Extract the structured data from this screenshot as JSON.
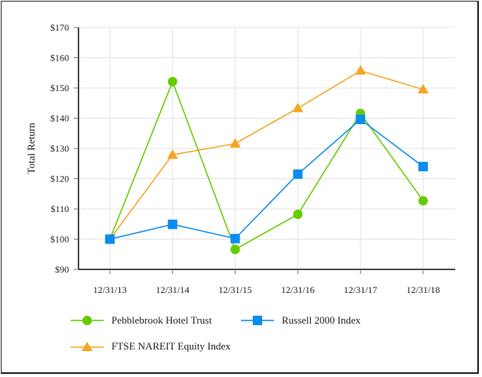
{
  "chart_data": {
    "type": "line",
    "title": "",
    "xlabel": "",
    "ylabel": "Total Return",
    "ylim": [
      90,
      170
    ],
    "ytick_step": 10,
    "ytick_labels": [
      "$90",
      "$100",
      "$110",
      "$120",
      "$130",
      "$140",
      "$150",
      "$160",
      "$170"
    ],
    "categories": [
      "12/31/13",
      "12/31/14",
      "12/31/15",
      "12/31/16",
      "12/31/17",
      "12/31/18"
    ],
    "grid": true,
    "legend_position": "bottom",
    "series": [
      {
        "name": "Pebblebrook Hotel Trust",
        "color": "#66cc00",
        "marker": "circle",
        "values": [
          100.0,
          152.1,
          96.6,
          108.2,
          141.6,
          112.7
        ]
      },
      {
        "name": "Russell 2000 Index",
        "color": "#0a8cf0",
        "marker": "square",
        "values": [
          100.0,
          104.9,
          100.2,
          121.5,
          139.6,
          124.0
        ]
      },
      {
        "name": "FTSE NAREIT Equity Index",
        "color": "#f5a623",
        "marker": "triangle",
        "values": [
          100.0,
          127.9,
          131.6,
          143.3,
          155.7,
          149.5
        ]
      }
    ]
  },
  "legend": {
    "items": [
      {
        "label": "Pebblebrook Hotel Trust"
      },
      {
        "label": "Russell 2000 Index"
      },
      {
        "label": "FTSE NAREIT Equity Index"
      }
    ]
  }
}
